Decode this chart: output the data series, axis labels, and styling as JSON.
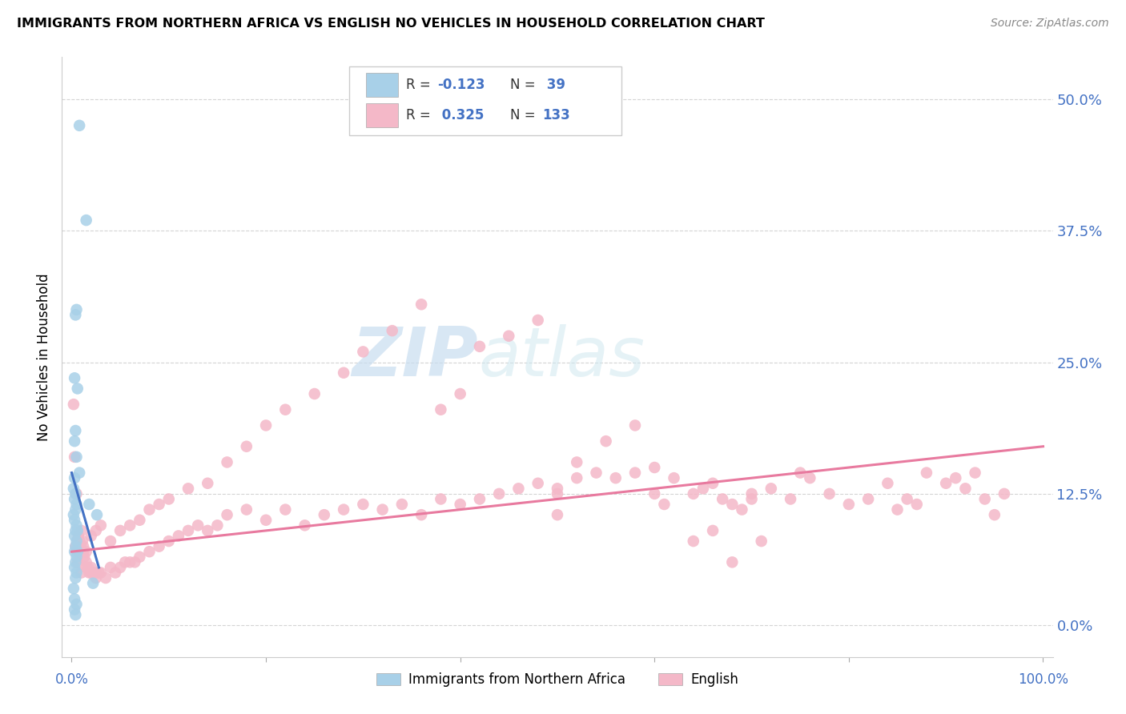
{
  "title": "IMMIGRANTS FROM NORTHERN AFRICA VS ENGLISH NO VEHICLES IN HOUSEHOLD CORRELATION CHART",
  "source": "Source: ZipAtlas.com",
  "ylabel": "No Vehicles in Household",
  "ytick_labels": [
    "0.0%",
    "12.5%",
    "25.0%",
    "37.5%",
    "50.0%"
  ],
  "ytick_values": [
    0.0,
    12.5,
    25.0,
    37.5,
    50.0
  ],
  "xlim": [
    -1,
    101
  ],
  "ylim": [
    -3,
    54
  ],
  "legend_blue_label": "Immigrants from Northern Africa",
  "legend_pink_label": "English",
  "blue_color": "#a8d0e8",
  "pink_color": "#f4b8c8",
  "blue_line_color": "#4472c4",
  "pink_line_color": "#e87a9f",
  "grid_color": "#d0d0d0",
  "watermark_zip": "ZIP",
  "watermark_atlas": "atlas",
  "background_color": "#ffffff",
  "blue_line_x": [
    0.0,
    2.8
  ],
  "blue_line_y": [
    14.5,
    5.5
  ],
  "pink_line_x": [
    0.0,
    100.0
  ],
  "pink_line_y": [
    7.0,
    17.0
  ],
  "blue_scatter_x": [
    0.8,
    1.5,
    0.5,
    0.4,
    0.3,
    0.6,
    0.4,
    0.3,
    0.5,
    0.8,
    0.3,
    0.2,
    0.4,
    0.3,
    0.5,
    0.4,
    0.2,
    0.3,
    0.5,
    0.6,
    0.4,
    0.3,
    0.5,
    0.4,
    0.3,
    0.6,
    0.5,
    0.4,
    0.3,
    0.5,
    0.4,
    1.8,
    2.2,
    2.6,
    0.2,
    0.3,
    0.5,
    0.3,
    0.4
  ],
  "blue_scatter_y": [
    47.5,
    38.5,
    30.0,
    29.5,
    23.5,
    22.5,
    18.5,
    17.5,
    16.0,
    14.5,
    14.0,
    13.0,
    12.5,
    12.0,
    11.5,
    11.0,
    10.5,
    10.0,
    9.5,
    9.0,
    9.0,
    8.5,
    8.0,
    7.5,
    7.0,
    7.0,
    6.5,
    6.0,
    5.5,
    5.0,
    4.5,
    11.5,
    4.0,
    10.5,
    3.5,
    2.5,
    2.0,
    1.5,
    1.0
  ],
  "pink_scatter_x": [
    0.2,
    0.3,
    0.4,
    0.5,
    0.6,
    0.6,
    0.7,
    0.7,
    0.8,
    0.9,
    1.0,
    1.0,
    1.1,
    1.2,
    1.3,
    1.5,
    1.5,
    1.7,
    1.8,
    2.0,
    2.0,
    2.2,
    2.5,
    2.5,
    2.8,
    3.0,
    3.5,
    4.0,
    4.5,
    5.0,
    5.5,
    6.0,
    6.5,
    7.0,
    8.0,
    9.0,
    10.0,
    11.0,
    12.0,
    13.0,
    14.0,
    15.0,
    16.0,
    18.0,
    20.0,
    22.0,
    24.0,
    26.0,
    28.0,
    30.0,
    32.0,
    34.0,
    36.0,
    38.0,
    40.0,
    42.0,
    44.0,
    46.0,
    48.0,
    50.0,
    50.0,
    52.0,
    54.0,
    56.0,
    58.0,
    60.0,
    60.0,
    62.0,
    64.0,
    65.0,
    66.0,
    67.0,
    68.0,
    69.0,
    70.0,
    70.0,
    72.0,
    74.0,
    75.0,
    76.0,
    78.0,
    80.0,
    82.0,
    84.0,
    85.0,
    86.0,
    87.0,
    88.0,
    90.0,
    91.0,
    92.0,
    93.0,
    94.0,
    95.0,
    96.0,
    1.0,
    1.2,
    1.5,
    2.0,
    2.5,
    3.0,
    4.0,
    5.0,
    6.0,
    7.0,
    8.0,
    9.0,
    10.0,
    12.0,
    14.0,
    16.0,
    18.0,
    20.0,
    22.0,
    25.0,
    28.0,
    30.0,
    33.0,
    36.0,
    38.0,
    40.0,
    42.0,
    45.0,
    48.0,
    50.0,
    52.0,
    55.0,
    58.0,
    61.0,
    64.0,
    66.0,
    68.0,
    71.0
  ],
  "pink_scatter_y": [
    21.0,
    16.0,
    7.5,
    12.5,
    8.0,
    6.0,
    8.5,
    7.0,
    8.0,
    7.5,
    9.0,
    7.0,
    8.0,
    7.0,
    6.5,
    6.0,
    5.5,
    5.5,
    5.0,
    5.5,
    5.0,
    5.0,
    5.0,
    4.5,
    5.0,
    5.0,
    4.5,
    5.5,
    5.0,
    5.5,
    6.0,
    6.0,
    6.0,
    6.5,
    7.0,
    7.5,
    8.0,
    8.5,
    9.0,
    9.5,
    9.0,
    9.5,
    10.5,
    11.0,
    10.0,
    11.0,
    9.5,
    10.5,
    11.0,
    11.5,
    11.0,
    11.5,
    10.5,
    12.0,
    11.5,
    12.0,
    12.5,
    13.0,
    13.5,
    12.5,
    13.0,
    14.0,
    14.5,
    14.0,
    14.5,
    15.0,
    12.5,
    14.0,
    12.5,
    13.0,
    13.5,
    12.0,
    11.5,
    11.0,
    12.0,
    12.5,
    13.0,
    12.0,
    14.5,
    14.0,
    12.5,
    11.5,
    12.0,
    13.5,
    11.0,
    12.0,
    11.5,
    14.5,
    13.5,
    14.0,
    13.0,
    14.5,
    12.0,
    10.5,
    12.5,
    5.0,
    7.5,
    7.0,
    8.5,
    9.0,
    9.5,
    8.0,
    9.0,
    9.5,
    10.0,
    11.0,
    11.5,
    12.0,
    13.0,
    13.5,
    15.5,
    17.0,
    19.0,
    20.5,
    22.0,
    24.0,
    26.0,
    28.0,
    30.5,
    20.5,
    22.0,
    26.5,
    27.5,
    29.0,
    10.5,
    15.5,
    17.5,
    19.0,
    11.5,
    8.0,
    9.0,
    6.0,
    8.0
  ]
}
